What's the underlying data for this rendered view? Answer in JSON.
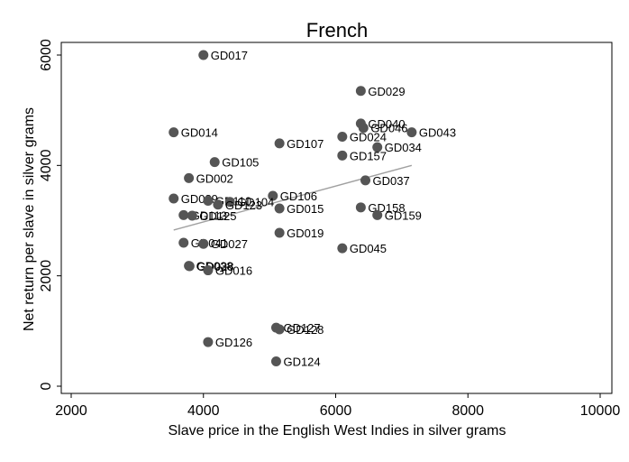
{
  "chart_data": {
    "type": "scatter",
    "title": "French",
    "xlabel": "Slave price in the English West Indies in silver grams",
    "ylabel": "Net return per slave in silver grams",
    "xlim": [
      2000,
      10000
    ],
    "ylim": [
      0,
      6000
    ],
    "xticks": [
      2000,
      4000,
      6000,
      8000,
      10000
    ],
    "yticks": [
      0,
      2000,
      4000,
      6000
    ],
    "grid": false,
    "marker_color": "#555555",
    "fit_line_color": "#a0a0a0",
    "fit_line": {
      "x": [
        3550,
        7150
      ],
      "y": [
        2830,
        4000
      ]
    },
    "points": [
      {
        "label": "GD017",
        "x": 4000,
        "y": 6000
      },
      {
        "label": "GD029",
        "x": 6380,
        "y": 5350
      },
      {
        "label": "GD040",
        "x": 6380,
        "y": 4760
      },
      {
        "label": "GD046",
        "x": 6420,
        "y": 4680
      },
      {
        "label": "GD043",
        "x": 7150,
        "y": 4600
      },
      {
        "label": "GD014",
        "x": 3550,
        "y": 4600
      },
      {
        "label": "GD024",
        "x": 6100,
        "y": 4520
      },
      {
        "label": "GD107",
        "x": 5150,
        "y": 4400
      },
      {
        "label": "GD034",
        "x": 6630,
        "y": 4330
      },
      {
        "label": "GD157",
        "x": 6100,
        "y": 4180
      },
      {
        "label": "GD105",
        "x": 4170,
        "y": 4060
      },
      {
        "label": "GD002",
        "x": 3780,
        "y": 3770
      },
      {
        "label": "GD037",
        "x": 6450,
        "y": 3730
      },
      {
        "label": "GD106",
        "x": 5050,
        "y": 3450
      },
      {
        "label": "GD089",
        "x": 3550,
        "y": 3400
      },
      {
        "label": "GD110",
        "x": 4070,
        "y": 3360
      },
      {
        "label": "GD104",
        "x": 4400,
        "y": 3340
      },
      {
        "label": "GD123",
        "x": 4220,
        "y": 3290
      },
      {
        "label": "GD015",
        "x": 5150,
        "y": 3220
      },
      {
        "label": "GD158",
        "x": 6380,
        "y": 3240
      },
      {
        "label": "GD159",
        "x": 6630,
        "y": 3100
      },
      {
        "label": "GD113",
        "x": 3700,
        "y": 3100
      },
      {
        "label": "GD125",
        "x": 3830,
        "y": 3090
      },
      {
        "label": "GD019",
        "x": 5150,
        "y": 2780
      },
      {
        "label": "GD045",
        "x": 6100,
        "y": 2500
      },
      {
        "label": "GD041",
        "x": 3700,
        "y": 2600
      },
      {
        "label": "GD027",
        "x": 4000,
        "y": 2580
      },
      {
        "label": "GD038",
        "x": 3780,
        "y": 2180
      },
      {
        "label": "GD028",
        "x": 3790,
        "y": 2175
      },
      {
        "label": "GD016",
        "x": 4070,
        "y": 2100
      },
      {
        "label": "GD127",
        "x": 5100,
        "y": 1060
      },
      {
        "label": "GD128",
        "x": 5150,
        "y": 1030
      },
      {
        "label": "GD126",
        "x": 4070,
        "y": 800
      },
      {
        "label": "GD124",
        "x": 5100,
        "y": 450
      }
    ]
  }
}
